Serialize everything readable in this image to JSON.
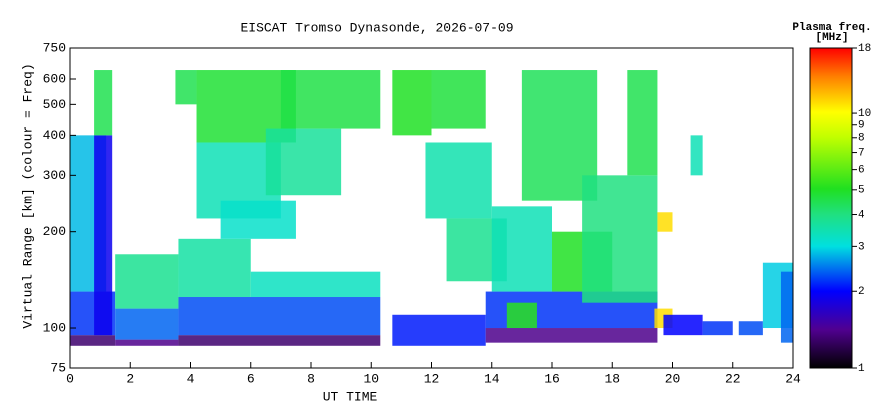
{
  "chart_data": {
    "type": "heatmap",
    "title": "EISCAT Tromso Dynasonde, 2026-07-09",
    "x_label": "UT TIME",
    "y_label": "Virtual Range [km] (colour = Freq)",
    "colorbar_title": [
      "Plasma freq.",
      "[MHz]"
    ],
    "y_scale": "log",
    "colorbar_scale": "log",
    "xlim": [
      0,
      24
    ],
    "xticks": [
      0,
      2,
      4,
      6,
      8,
      10,
      12,
      14,
      16,
      18,
      20,
      22,
      24
    ],
    "ylim": [
      75,
      750
    ],
    "yticks": [
      75,
      100,
      200,
      300,
      400,
      500,
      600,
      750
    ],
    "clim": [
      1,
      18
    ],
    "cticks": [
      1,
      2,
      3,
      4,
      5,
      6,
      7,
      8,
      9,
      10,
      18
    ],
    "cells": [
      {
        "x": [
          0,
          1.5
        ],
        "y": [
          88,
          95
        ],
        "value": 1.3
      },
      {
        "x": [
          0,
          1.5
        ],
        "y": [
          95,
          130
        ],
        "value": 2.2
      },
      {
        "x": [
          0,
          1.2
        ],
        "y": [
          130,
          400
        ],
        "value": 2.8
      },
      {
        "x": [
          0.8,
          1.4
        ],
        "y": [
          95,
          400
        ],
        "value": 1.9
      },
      {
        "x": [
          0.8,
          1.4
        ],
        "y": [
          400,
          640
        ],
        "value": 4.5
      },
      {
        "x": [
          1.5,
          3.6
        ],
        "y": [
          88,
          92
        ],
        "value": 1.4
      },
      {
        "x": [
          1.5,
          3.6
        ],
        "y": [
          92,
          115
        ],
        "value": 2.4
      },
      {
        "x": [
          1.5,
          3.6
        ],
        "y": [
          115,
          170
        ],
        "value": 3.8
      },
      {
        "x": [
          3.6,
          10.3
        ],
        "y": [
          88,
          95
        ],
        "value": 1.3
      },
      {
        "x": [
          3.6,
          10.3
        ],
        "y": [
          95,
          125
        ],
        "value": 2.3
      },
      {
        "x": [
          3.6,
          6
        ],
        "y": [
          125,
          190
        ],
        "value": 3.6
      },
      {
        "x": [
          6,
          10.3
        ],
        "y": [
          125,
          150
        ],
        "value": 3.3
      },
      {
        "x": [
          3.5,
          4.2
        ],
        "y": [
          500,
          640
        ],
        "value": 4.5
      },
      {
        "x": [
          4.2,
          7.5
        ],
        "y": [
          380,
          640
        ],
        "value": 4.8
      },
      {
        "x": [
          4.2,
          7
        ],
        "y": [
          220,
          380
        ],
        "value": 3.4
      },
      {
        "x": [
          5,
          7.5
        ],
        "y": [
          190,
          250
        ],
        "value": 3.2
      },
      {
        "x": [
          7,
          10.3
        ],
        "y": [
          420,
          640
        ],
        "value": 4.6
      },
      {
        "x": [
          6.5,
          9
        ],
        "y": [
          260,
          420
        ],
        "value": 3.7
      },
      {
        "x": [
          10.7,
          13.8
        ],
        "y": [
          88,
          110
        ],
        "value": 2.1
      },
      {
        "x": [
          10.7,
          12
        ],
        "y": [
          400,
          640
        ],
        "value": 5.0
      },
      {
        "x": [
          12,
          13.8
        ],
        "y": [
          420,
          640
        ],
        "value": 4.7
      },
      {
        "x": [
          11.8,
          14
        ],
        "y": [
          220,
          380
        ],
        "value": 3.5
      },
      {
        "x": [
          12.5,
          14.5
        ],
        "y": [
          140,
          220
        ],
        "value": 3.8
      },
      {
        "x": [
          13.8,
          19.5
        ],
        "y": [
          90,
          100
        ],
        "value": 1.4
      },
      {
        "x": [
          13.8,
          19.5
        ],
        "y": [
          100,
          130
        ],
        "value": 2.2
      },
      {
        "x": [
          14,
          16
        ],
        "y": [
          130,
          240
        ],
        "value": 3.4
      },
      {
        "x": [
          14.5,
          15.5
        ],
        "y": [
          100,
          120
        ],
        "value": 5.2
      },
      {
        "x": [
          15,
          17.5
        ],
        "y": [
          250,
          640
        ],
        "value": 4.4
      },
      {
        "x": [
          16,
          18
        ],
        "y": [
          130,
          200
        ],
        "value": 5.0
      },
      {
        "x": [
          17,
          19.5
        ],
        "y": [
          120,
          300
        ],
        "value": 4.0
      },
      {
        "x": [
          18.5,
          19.5
        ],
        "y": [
          300,
          640
        ],
        "value": 4.5
      },
      {
        "x": [
          19.4,
          20
        ],
        "y": [
          100,
          115
        ],
        "value": 11
      },
      {
        "x": [
          19.5,
          20
        ],
        "y": [
          200,
          230
        ],
        "value": 11
      },
      {
        "x": [
          19.7,
          21
        ],
        "y": [
          95,
          110
        ],
        "value": 2.0
      },
      {
        "x": [
          20.6,
          21
        ],
        "y": [
          300,
          400
        ],
        "value": 3.4
      },
      {
        "x": [
          21,
          22
        ],
        "y": [
          95,
          105
        ],
        "value": 2.2
      },
      {
        "x": [
          22.2,
          23
        ],
        "y": [
          95,
          105
        ],
        "value": 2.3
      },
      {
        "x": [
          23,
          24
        ],
        "y": [
          100,
          160
        ],
        "value": 2.9
      },
      {
        "x": [
          23.6,
          24
        ],
        "y": [
          90,
          150
        ],
        "value": 2.4
      }
    ]
  }
}
